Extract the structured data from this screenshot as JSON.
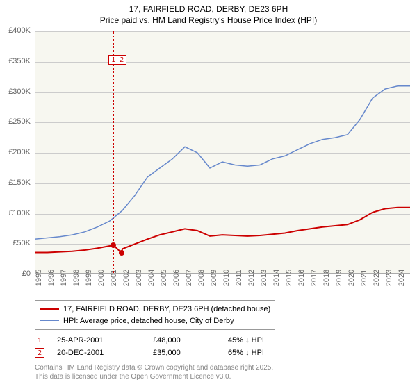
{
  "title": {
    "line1": "17, FAIRFIELD ROAD, DERBY, DE23 6PH",
    "line2": "Price paid vs. HM Land Registry's House Price Index (HPI)"
  },
  "chart": {
    "type": "line",
    "background_color": "#f7f7f0",
    "grid_color": "#cccccc",
    "xlim": [
      1995,
      2025
    ],
    "ylim": [
      0,
      400000
    ],
    "ytick_step": 50000,
    "yticks": [
      "£0",
      "£50K",
      "£100K",
      "£150K",
      "£200K",
      "£250K",
      "£300K",
      "£350K",
      "£400K"
    ],
    "xticks": [
      "1995",
      "1996",
      "1997",
      "1998",
      "1999",
      "2000",
      "2001",
      "2002",
      "2003",
      "2004",
      "2005",
      "2006",
      "2007",
      "2008",
      "2009",
      "2010",
      "2011",
      "2012",
      "2013",
      "2014",
      "2015",
      "2016",
      "2017",
      "2018",
      "2019",
      "2020",
      "2021",
      "2022",
      "2023",
      "2024"
    ],
    "series": [
      {
        "name": "property",
        "color": "#cc0000",
        "width": 2,
        "label": "17, FAIRFIELD ROAD, DERBY, DE23 6PH (detached house)",
        "points": [
          [
            1995,
            36000
          ],
          [
            1996,
            36000
          ],
          [
            1997,
            37000
          ],
          [
            1998,
            38000
          ],
          [
            1999,
            40000
          ],
          [
            2000,
            43000
          ],
          [
            2001.3,
            48000
          ],
          [
            2001.95,
            35000
          ],
          [
            2002,
            42000
          ],
          [
            2003,
            50000
          ],
          [
            2004,
            58000
          ],
          [
            2005,
            65000
          ],
          [
            2006,
            70000
          ],
          [
            2007,
            75000
          ],
          [
            2008,
            72000
          ],
          [
            2009,
            63000
          ],
          [
            2010,
            65000
          ],
          [
            2011,
            64000
          ],
          [
            2012,
            63000
          ],
          [
            2013,
            64000
          ],
          [
            2014,
            66000
          ],
          [
            2015,
            68000
          ],
          [
            2016,
            72000
          ],
          [
            2017,
            75000
          ],
          [
            2018,
            78000
          ],
          [
            2019,
            80000
          ],
          [
            2020,
            82000
          ],
          [
            2021,
            90000
          ],
          [
            2022,
            102000
          ],
          [
            2023,
            108000
          ],
          [
            2024,
            110000
          ],
          [
            2025,
            110000
          ]
        ]
      },
      {
        "name": "hpi",
        "color": "#6688cc",
        "width": 1.5,
        "label": "HPI: Average price, detached house, City of Derby",
        "points": [
          [
            1995,
            58000
          ],
          [
            1996,
            60000
          ],
          [
            1997,
            62000
          ],
          [
            1998,
            65000
          ],
          [
            1999,
            70000
          ],
          [
            2000,
            78000
          ],
          [
            2001,
            88000
          ],
          [
            2002,
            105000
          ],
          [
            2003,
            130000
          ],
          [
            2004,
            160000
          ],
          [
            2005,
            175000
          ],
          [
            2006,
            190000
          ],
          [
            2007,
            210000
          ],
          [
            2008,
            200000
          ],
          [
            2009,
            175000
          ],
          [
            2010,
            185000
          ],
          [
            2011,
            180000
          ],
          [
            2012,
            178000
          ],
          [
            2013,
            180000
          ],
          [
            2014,
            190000
          ],
          [
            2015,
            195000
          ],
          [
            2016,
            205000
          ],
          [
            2017,
            215000
          ],
          [
            2018,
            222000
          ],
          [
            2019,
            225000
          ],
          [
            2020,
            230000
          ],
          [
            2021,
            255000
          ],
          [
            2022,
            290000
          ],
          [
            2023,
            305000
          ],
          [
            2024,
            310000
          ],
          [
            2025,
            310000
          ]
        ]
      }
    ],
    "markers": [
      {
        "id": "1",
        "x": 2001.3,
        "y": 48000
      },
      {
        "id": "2",
        "x": 2001.95,
        "y": 35000
      }
    ]
  },
  "legend": {
    "series1": "17, FAIRFIELD ROAD, DERBY, DE23 6PH (detached house)",
    "series2": "HPI: Average price, detached house, City of Derby"
  },
  "events": [
    {
      "id": "1",
      "date": "25-APR-2001",
      "price": "£48,000",
      "delta": "45% ↓ HPI"
    },
    {
      "id": "2",
      "date": "20-DEC-2001",
      "price": "£35,000",
      "delta": "65% ↓ HPI"
    }
  ],
  "footer": {
    "line1": "Contains HM Land Registry data © Crown copyright and database right 2025.",
    "line2": "This data is licensed under the Open Government Licence v3.0."
  },
  "title_fontsize": 12,
  "label_fontsize": 11
}
